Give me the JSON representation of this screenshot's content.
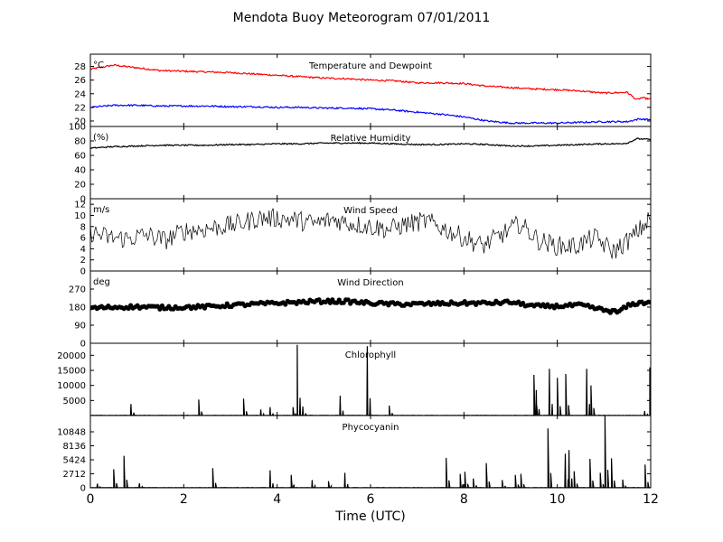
{
  "figure": {
    "title": "Mendota Buoy Meteorogram 07/01/2011"
  },
  "chart_data": [
    {
      "type": "line",
      "title": "Temperature and Dewpoint",
      "ylabel": "°C",
      "xlim": [
        0,
        12
      ],
      "ylim": [
        19.2,
        29.8
      ],
      "yticks": [
        20,
        22,
        24,
        26,
        28
      ],
      "xticks": [
        0,
        2,
        4,
        6,
        8,
        10,
        12
      ],
      "series": [
        {
          "color": "#ff0000",
          "x": [
            0,
            0.5,
            1,
            1.5,
            2,
            2.5,
            3,
            3.5,
            4,
            4.5,
            5,
            5.5,
            6,
            6.5,
            7,
            7.5,
            8,
            8.5,
            9,
            9.5,
            10,
            10.5,
            11,
            11.5,
            11.7,
            11.8,
            12
          ],
          "values": [
            27.6,
            28.2,
            27.8,
            27.4,
            27.3,
            27.2,
            27.1,
            26.9,
            26.7,
            26.5,
            26.3,
            26.2,
            26.0,
            25.9,
            25.6,
            25.6,
            25.5,
            25.1,
            24.9,
            24.7,
            24.6,
            24.4,
            24.1,
            24.2,
            23.1,
            23.4,
            23.2
          ]
        },
        {
          "color": "#0000ff",
          "x": [
            0,
            0.5,
            1,
            1.5,
            2,
            2.5,
            3,
            3.5,
            4,
            4.5,
            5,
            5.5,
            6,
            6.5,
            7,
            7.5,
            8,
            8.5,
            9,
            9.5,
            10,
            10.5,
            11,
            11.5,
            11.75,
            12
          ],
          "values": [
            22.0,
            22.3,
            22.3,
            22.2,
            22.2,
            22.2,
            22.1,
            22.1,
            22.0,
            22.0,
            21.9,
            21.9,
            21.8,
            21.6,
            21.3,
            21.0,
            20.6,
            20.0,
            19.7,
            19.7,
            19.7,
            19.8,
            19.9,
            19.9,
            20.3,
            20.2
          ]
        }
      ]
    },
    {
      "type": "line",
      "title": "Relative Humidity",
      "ylabel": "(%)",
      "xlim": [
        0,
        12
      ],
      "ylim": [
        0,
        100
      ],
      "yticks": [
        0,
        20,
        40,
        60,
        80,
        100
      ],
      "series": [
        {
          "color": "#000000",
          "x": [
            0,
            0.5,
            1,
            1.5,
            2,
            2.5,
            3,
            3.5,
            4,
            4.5,
            5,
            5.5,
            6,
            6.5,
            7,
            7.5,
            8,
            8.5,
            9,
            9.5,
            10,
            10.5,
            11,
            11.3,
            11.5,
            11.7,
            12
          ],
          "values": [
            70,
            72,
            73,
            74,
            74,
            74,
            75,
            75,
            76,
            76,
            77,
            77,
            77,
            76,
            75,
            75,
            76,
            75,
            73,
            73,
            74,
            75,
            76,
            76,
            77,
            83,
            82
          ]
        }
      ]
    },
    {
      "type": "line",
      "title": "Wind Speed",
      "ylabel": "m/s",
      "xlim": [
        0,
        12
      ],
      "ylim": [
        0,
        13
      ],
      "yticks": [
        0,
        2,
        4,
        6,
        8,
        10,
        12
      ],
      "series": [
        {
          "color": "#000000",
          "x": [
            0,
            0.4,
            0.8,
            1.2,
            1.6,
            2.0,
            2.4,
            2.8,
            3.2,
            3.6,
            4.0,
            4.4,
            4.8,
            5.2,
            5.6,
            6.0,
            6.4,
            6.8,
            7.2,
            7.6,
            8.0,
            8.4,
            8.8,
            9.2,
            9.6,
            10.0,
            10.4,
            10.8,
            11.2,
            11.6,
            12.0
          ],
          "values": [
            7.0,
            6.0,
            5.8,
            6.5,
            5.5,
            7.2,
            7.5,
            8.0,
            8.5,
            9.5,
            9.5,
            9.2,
            8.5,
            9.3,
            8.5,
            8.0,
            7.5,
            8.5,
            9.0,
            7.5,
            6.0,
            4.5,
            6.5,
            8.5,
            5.5,
            4.5,
            4.5,
            6.0,
            3.5,
            6.0,
            9.5
          ]
        }
      ]
    },
    {
      "type": "scatter",
      "title": "Wind Direction",
      "ylabel": "deg",
      "xlim": [
        0,
        12
      ],
      "ylim": [
        0,
        360
      ],
      "yticks": [
        0,
        90,
        180,
        270
      ],
      "series": [
        {
          "color": "#000000",
          "x": [
            0,
            0.5,
            1,
            1.5,
            2,
            2.5,
            3,
            3.5,
            4,
            4.5,
            5,
            5.5,
            6,
            6.5,
            7,
            7.5,
            8,
            8.5,
            9,
            9.5,
            10,
            10.5,
            11,
            11.3,
            11.5,
            11.7,
            12
          ],
          "values": [
            175,
            180,
            182,
            178,
            180,
            182,
            190,
            195,
            200,
            205,
            210,
            208,
            200,
            195,
            195,
            198,
            200,
            200,
            205,
            185,
            185,
            190,
            165,
            155,
            185,
            200,
            205
          ]
        }
      ]
    },
    {
      "type": "line",
      "title": "Chlorophyll",
      "xlim": [
        0,
        12
      ],
      "ylim": [
        0,
        24000
      ],
      "yticks": [
        5000,
        10000,
        15000,
        20000
      ],
      "spikes": [
        [
          0.87,
          3800
        ],
        [
          2.32,
          5300
        ],
        [
          3.28,
          5600
        ],
        [
          3.65,
          2000
        ],
        [
          3.85,
          2800
        ],
        [
          4.34,
          2800
        ],
        [
          4.43,
          23500
        ],
        [
          4.55,
          3000
        ],
        [
          5.35,
          6600
        ],
        [
          5.93,
          23000
        ],
        [
          6.4,
          3300
        ],
        [
          9.5,
          13500
        ],
        [
          9.55,
          8500
        ],
        [
          9.83,
          15500
        ],
        [
          10.0,
          12500
        ],
        [
          10.18,
          13800
        ],
        [
          10.63,
          15500
        ],
        [
          10.72,
          10000
        ],
        [
          11.87,
          1500
        ],
        [
          11.98,
          16000
        ]
      ]
    },
    {
      "type": "line",
      "title": "Phycocyanin",
      "xlim": [
        0,
        12
      ],
      "ylim": [
        0,
        14000
      ],
      "yticks": [
        0,
        2712,
        5424,
        8136,
        10848
      ],
      "spikes": [
        [
          0.15,
          800
        ],
        [
          0.5,
          3600
        ],
        [
          0.72,
          6200
        ],
        [
          1.05,
          900
        ],
        [
          2.62,
          3800
        ],
        [
          3.85,
          3400
        ],
        [
          4.3,
          2500
        ],
        [
          4.75,
          1500
        ],
        [
          5.1,
          1300
        ],
        [
          5.45,
          2900
        ],
        [
          7.62,
          5800
        ],
        [
          7.92,
          2700
        ],
        [
          8.02,
          3100
        ],
        [
          8.2,
          1800
        ],
        [
          8.48,
          4800
        ],
        [
          8.82,
          1500
        ],
        [
          9.1,
          2500
        ],
        [
          9.22,
          2700
        ],
        [
          9.8,
          11500
        ],
        [
          10.17,
          6600
        ],
        [
          10.25,
          7300
        ],
        [
          10.36,
          3200
        ],
        [
          10.7,
          5600
        ],
        [
          10.92,
          2900
        ],
        [
          11.02,
          14000
        ],
        [
          11.16,
          5700
        ],
        [
          11.4,
          1600
        ],
        [
          11.88,
          4500
        ]
      ]
    }
  ],
  "xaxis": {
    "label": "Time (UTC)",
    "ticks": [
      "0",
      "2",
      "4",
      "6",
      "8",
      "10",
      "12"
    ]
  }
}
